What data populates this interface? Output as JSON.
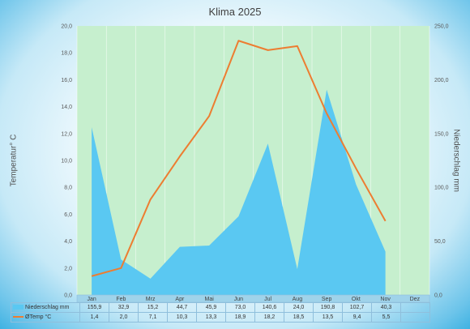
{
  "chart_data": {
    "type": "area",
    "title": "Klima 2025",
    "categories": [
      "Jan",
      "Feb",
      "Mrz",
      "Apr",
      "Mai",
      "Jun",
      "Jul",
      "Aug",
      "Sep",
      "Okt",
      "Nov",
      "Dez"
    ],
    "ylabel": "Temperatur° C",
    "y2label": "Niederschlag mm",
    "ylim": [
      0,
      20
    ],
    "y2lim": [
      0,
      250
    ],
    "y_ticks": [
      "0,0",
      "2,0",
      "4,0",
      "6,0",
      "8,0",
      "10,0",
      "12,0",
      "14,0",
      "16,0",
      "18,0",
      "20,0"
    ],
    "y2_ticks": [
      "0,0",
      "50,0",
      "100,0",
      "150,0",
      "200,0",
      "250,0"
    ],
    "series": [
      {
        "name": "Niederschlag mm",
        "type": "area",
        "axis": "right",
        "color": "#5ac8f2",
        "values": [
          155.9,
          32.9,
          15.2,
          44.7,
          45.9,
          73.0,
          140.6,
          24.0,
          190.8,
          102.7,
          40.3,
          null
        ],
        "labels": [
          "155,9",
          "32,9",
          "15,2",
          "44,7",
          "45,9",
          "73,0",
          "140,6",
          "24,0",
          "190,8",
          "102,7",
          "40,3",
          ""
        ]
      },
      {
        "name": "ØTemp °C",
        "type": "line",
        "axis": "left",
        "color": "#ed7d31",
        "values": [
          1.4,
          2.0,
          7.1,
          10.3,
          13.3,
          18.9,
          18.2,
          18.5,
          13.5,
          9.4,
          5.5,
          null
        ],
        "labels": [
          "1,4",
          "2,0",
          "7,1",
          "10,3",
          "13,3",
          "18,9",
          "18,2",
          "18,5",
          "13,5",
          "9,4",
          "5,5",
          ""
        ]
      }
    ],
    "plot_background": "#c6efce",
    "grid": true,
    "legend": "data-table"
  }
}
